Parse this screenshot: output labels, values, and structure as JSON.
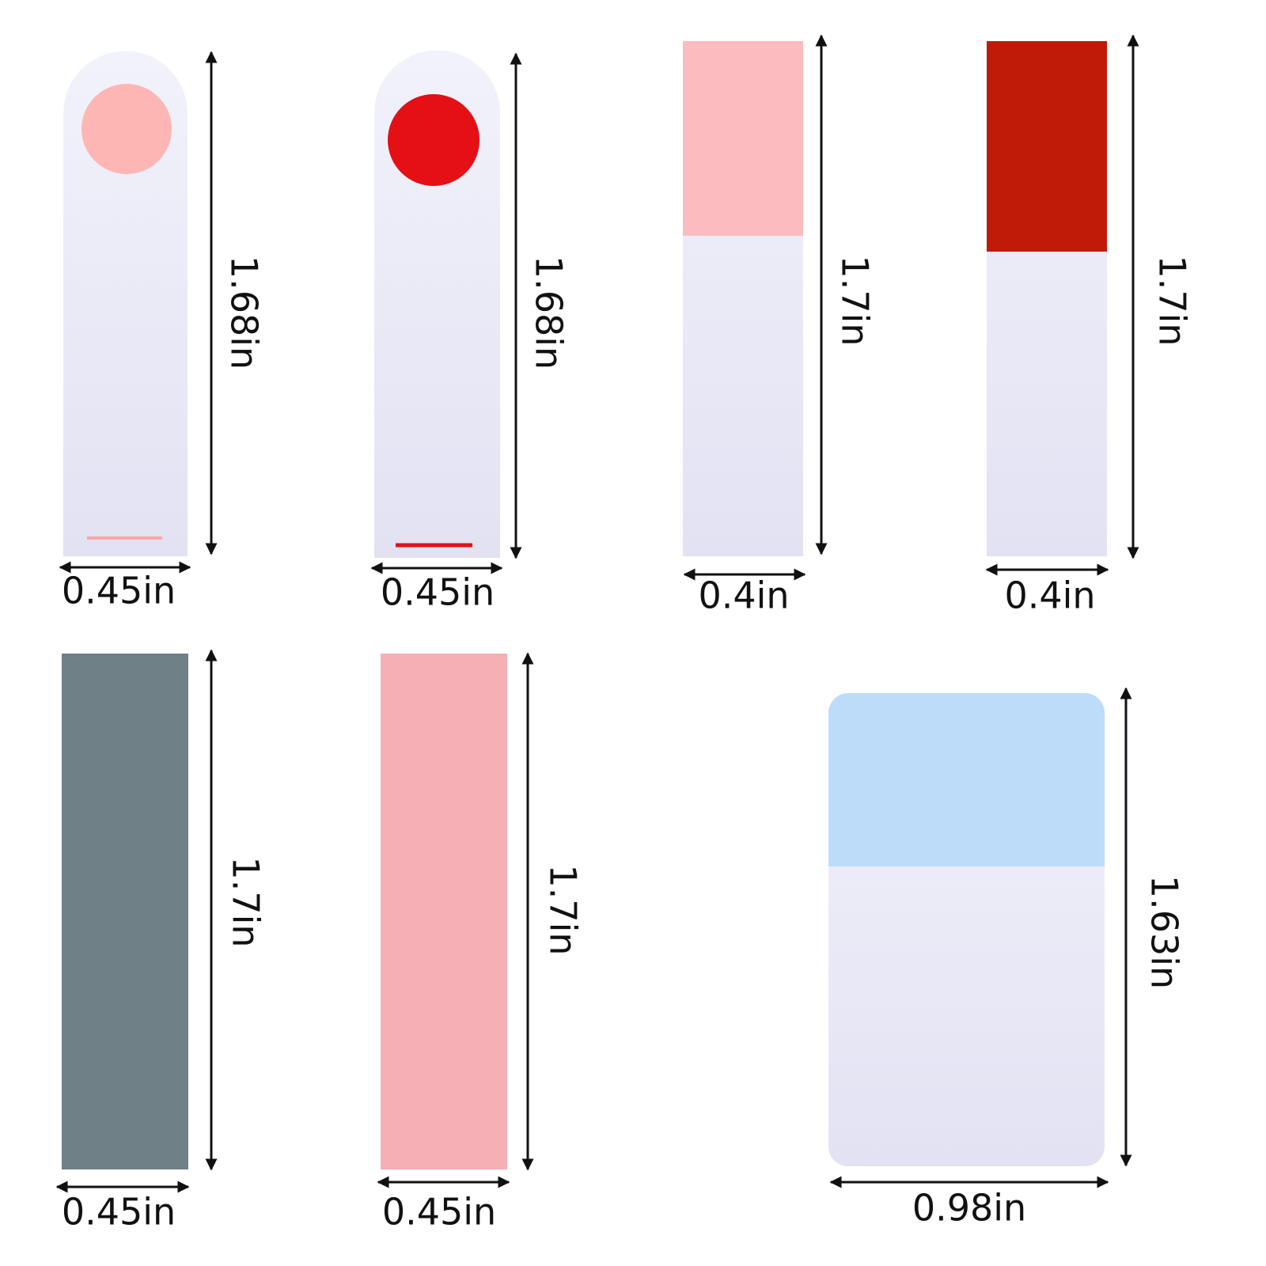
{
  "items": [
    {
      "height": "1.68in",
      "width": "0.45in"
    },
    {
      "height": "1.68in",
      "width": "0.45in"
    },
    {
      "height": "1.7in",
      "width": "0.4in"
    },
    {
      "height": "1.7in",
      "width": "0.4in"
    },
    {
      "height": "1.7in",
      "width": "0.45in"
    },
    {
      "height": "1.7in",
      "width": "0.45in"
    },
    {
      "height": "1.63in",
      "width": "0.98in"
    }
  ]
}
